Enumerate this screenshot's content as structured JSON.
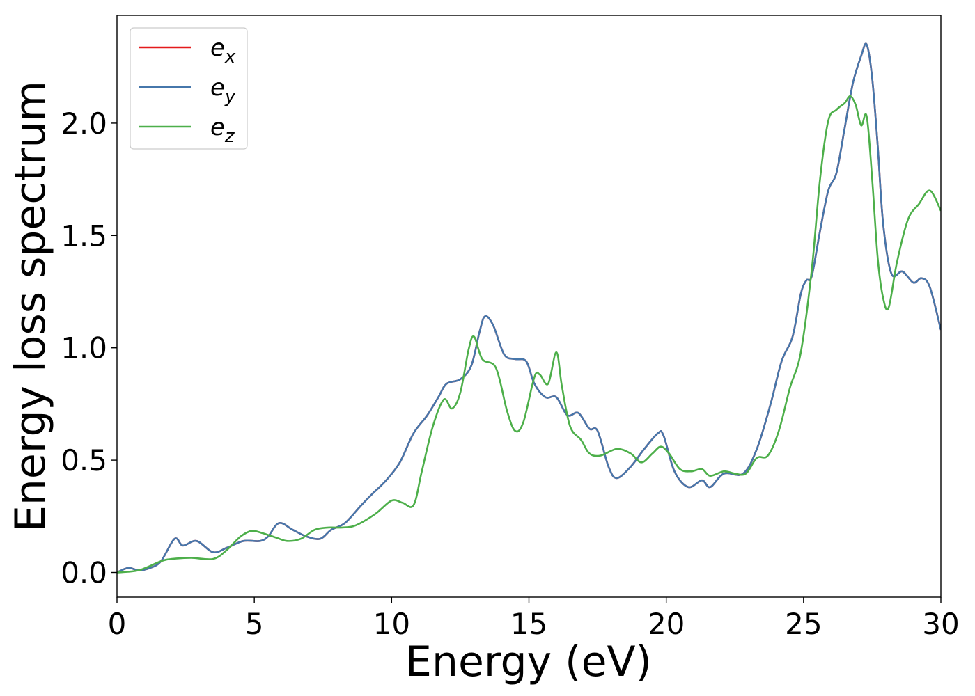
{
  "chart_data": {
    "type": "line",
    "title": "",
    "xlabel": "Energy (eV)",
    "ylabel": "Energy loss spectrum",
    "xlim": [
      0,
      30
    ],
    "ylim": [
      -0.11,
      2.48
    ],
    "xticks": [
      0,
      5,
      10,
      15,
      20,
      25,
      30
    ],
    "xtick_labels": [
      "0",
      "5",
      "10",
      "15",
      "20",
      "25",
      "30"
    ],
    "yticks": [
      0.0,
      0.5,
      1.0,
      1.5,
      2.0
    ],
    "ytick_labels": [
      "0.0",
      "0.5",
      "1.0",
      "1.5",
      "2.0"
    ],
    "grid": false,
    "legend_position": "top-left",
    "series": [
      {
        "name": "e",
        "subscript": "x",
        "color": "#e41a1c",
        "points": [
          [
            0,
            0.0
          ],
          [
            0.4,
            0.02
          ],
          [
            0.8,
            0.01
          ],
          [
            1.2,
            0.02
          ],
          [
            1.6,
            0.05
          ],
          [
            2.1,
            0.15
          ],
          [
            2.4,
            0.12
          ],
          [
            2.9,
            0.14
          ],
          [
            3.5,
            0.09
          ],
          [
            4.0,
            0.11
          ],
          [
            4.6,
            0.14
          ],
          [
            5.2,
            0.14
          ],
          [
            5.5,
            0.16
          ],
          [
            5.9,
            0.22
          ],
          [
            6.4,
            0.19
          ],
          [
            6.9,
            0.16
          ],
          [
            7.4,
            0.15
          ],
          [
            7.8,
            0.19
          ],
          [
            8.3,
            0.22
          ],
          [
            8.9,
            0.3
          ],
          [
            9.3,
            0.35
          ],
          [
            9.8,
            0.41
          ],
          [
            10.3,
            0.49
          ],
          [
            10.8,
            0.62
          ],
          [
            11.3,
            0.7
          ],
          [
            11.7,
            0.78
          ],
          [
            12.0,
            0.84
          ],
          [
            12.5,
            0.86
          ],
          [
            12.9,
            0.92
          ],
          [
            13.2,
            1.07
          ],
          [
            13.4,
            1.14
          ],
          [
            13.7,
            1.1
          ],
          [
            14.1,
            0.97
          ],
          [
            14.5,
            0.95
          ],
          [
            14.9,
            0.94
          ],
          [
            15.2,
            0.84
          ],
          [
            15.6,
            0.78
          ],
          [
            16.0,
            0.78
          ],
          [
            16.4,
            0.7
          ],
          [
            16.8,
            0.71
          ],
          [
            17.2,
            0.64
          ],
          [
            17.5,
            0.63
          ],
          [
            17.9,
            0.47
          ],
          [
            18.2,
            0.42
          ],
          [
            18.7,
            0.47
          ],
          [
            19.2,
            0.55
          ],
          [
            19.7,
            0.62
          ],
          [
            19.9,
            0.61
          ],
          [
            20.3,
            0.45
          ],
          [
            20.8,
            0.38
          ],
          [
            21.3,
            0.41
          ],
          [
            21.6,
            0.38
          ],
          [
            22.1,
            0.44
          ],
          [
            22.8,
            0.44
          ],
          [
            23.3,
            0.55
          ],
          [
            23.8,
            0.75
          ],
          [
            24.2,
            0.94
          ],
          [
            24.6,
            1.05
          ],
          [
            24.9,
            1.24
          ],
          [
            25.1,
            1.3
          ],
          [
            25.3,
            1.32
          ],
          [
            25.6,
            1.52
          ],
          [
            25.9,
            1.7
          ],
          [
            26.2,
            1.78
          ],
          [
            26.5,
            1.98
          ],
          [
            26.8,
            2.18
          ],
          [
            27.1,
            2.3
          ],
          [
            27.3,
            2.35
          ],
          [
            27.5,
            2.2
          ],
          [
            27.7,
            1.9
          ],
          [
            27.9,
            1.55
          ],
          [
            28.2,
            1.33
          ],
          [
            28.6,
            1.34
          ],
          [
            29.0,
            1.29
          ],
          [
            29.3,
            1.31
          ],
          [
            29.6,
            1.27
          ],
          [
            30.0,
            1.08
          ]
        ]
      },
      {
        "name": "e",
        "subscript": "y",
        "color": "#4677ab",
        "points": [
          [
            0,
            0.0
          ],
          [
            0.4,
            0.02
          ],
          [
            0.8,
            0.01
          ],
          [
            1.2,
            0.02
          ],
          [
            1.6,
            0.05
          ],
          [
            2.1,
            0.15
          ],
          [
            2.4,
            0.12
          ],
          [
            2.9,
            0.14
          ],
          [
            3.5,
            0.09
          ],
          [
            4.0,
            0.11
          ],
          [
            4.6,
            0.14
          ],
          [
            5.2,
            0.14
          ],
          [
            5.5,
            0.16
          ],
          [
            5.9,
            0.22
          ],
          [
            6.4,
            0.19
          ],
          [
            6.9,
            0.16
          ],
          [
            7.4,
            0.15
          ],
          [
            7.8,
            0.19
          ],
          [
            8.3,
            0.22
          ],
          [
            8.9,
            0.3
          ],
          [
            9.3,
            0.35
          ],
          [
            9.8,
            0.41
          ],
          [
            10.3,
            0.49
          ],
          [
            10.8,
            0.62
          ],
          [
            11.3,
            0.7
          ],
          [
            11.7,
            0.78
          ],
          [
            12.0,
            0.84
          ],
          [
            12.5,
            0.86
          ],
          [
            12.9,
            0.92
          ],
          [
            13.2,
            1.07
          ],
          [
            13.4,
            1.14
          ],
          [
            13.7,
            1.1
          ],
          [
            14.1,
            0.97
          ],
          [
            14.5,
            0.95
          ],
          [
            14.9,
            0.94
          ],
          [
            15.2,
            0.84
          ],
          [
            15.6,
            0.78
          ],
          [
            16.0,
            0.78
          ],
          [
            16.4,
            0.7
          ],
          [
            16.8,
            0.71
          ],
          [
            17.2,
            0.64
          ],
          [
            17.5,
            0.63
          ],
          [
            17.9,
            0.47
          ],
          [
            18.2,
            0.42
          ],
          [
            18.7,
            0.47
          ],
          [
            19.2,
            0.55
          ],
          [
            19.7,
            0.62
          ],
          [
            19.9,
            0.61
          ],
          [
            20.3,
            0.45
          ],
          [
            20.8,
            0.38
          ],
          [
            21.3,
            0.41
          ],
          [
            21.6,
            0.38
          ],
          [
            22.1,
            0.44
          ],
          [
            22.8,
            0.44
          ],
          [
            23.3,
            0.55
          ],
          [
            23.8,
            0.75
          ],
          [
            24.2,
            0.94
          ],
          [
            24.6,
            1.05
          ],
          [
            24.9,
            1.24
          ],
          [
            25.1,
            1.3
          ],
          [
            25.3,
            1.32
          ],
          [
            25.6,
            1.52
          ],
          [
            25.9,
            1.7
          ],
          [
            26.2,
            1.78
          ],
          [
            26.5,
            1.98
          ],
          [
            26.8,
            2.18
          ],
          [
            27.1,
            2.3
          ],
          [
            27.3,
            2.35
          ],
          [
            27.5,
            2.2
          ],
          [
            27.7,
            1.9
          ],
          [
            27.9,
            1.55
          ],
          [
            28.2,
            1.33
          ],
          [
            28.6,
            1.34
          ],
          [
            29.0,
            1.29
          ],
          [
            29.3,
            1.31
          ],
          [
            29.6,
            1.27
          ],
          [
            30.0,
            1.08
          ]
        ]
      },
      {
        "name": "e",
        "subscript": "z",
        "color": "#4daf4a",
        "points": [
          [
            0,
            0.0
          ],
          [
            0.8,
            0.01
          ],
          [
            1.6,
            0.05
          ],
          [
            2.0,
            0.06
          ],
          [
            2.7,
            0.065
          ],
          [
            3.5,
            0.06
          ],
          [
            4.0,
            0.1
          ],
          [
            4.5,
            0.16
          ],
          [
            4.9,
            0.185
          ],
          [
            5.3,
            0.175
          ],
          [
            5.8,
            0.155
          ],
          [
            6.2,
            0.14
          ],
          [
            6.7,
            0.15
          ],
          [
            7.2,
            0.19
          ],
          [
            7.7,
            0.2
          ],
          [
            8.2,
            0.2
          ],
          [
            8.7,
            0.21
          ],
          [
            9.4,
            0.26
          ],
          [
            10.0,
            0.32
          ],
          [
            10.4,
            0.31
          ],
          [
            10.8,
            0.3
          ],
          [
            11.1,
            0.45
          ],
          [
            11.5,
            0.65
          ],
          [
            11.9,
            0.77
          ],
          [
            12.2,
            0.73
          ],
          [
            12.5,
            0.8
          ],
          [
            12.8,
            0.99
          ],
          [
            13.0,
            1.05
          ],
          [
            13.3,
            0.95
          ],
          [
            13.8,
            0.91
          ],
          [
            14.2,
            0.72
          ],
          [
            14.5,
            0.63
          ],
          [
            14.8,
            0.67
          ],
          [
            15.2,
            0.87
          ],
          [
            15.4,
            0.88
          ],
          [
            15.7,
            0.84
          ],
          [
            16.0,
            0.98
          ],
          [
            16.2,
            0.83
          ],
          [
            16.5,
            0.65
          ],
          [
            16.9,
            0.59
          ],
          [
            17.2,
            0.53
          ],
          [
            17.6,
            0.52
          ],
          [
            18.2,
            0.55
          ],
          [
            18.7,
            0.53
          ],
          [
            19.1,
            0.49
          ],
          [
            19.5,
            0.53
          ],
          [
            19.8,
            0.56
          ],
          [
            20.1,
            0.53
          ],
          [
            20.5,
            0.46
          ],
          [
            20.9,
            0.45
          ],
          [
            21.3,
            0.46
          ],
          [
            21.6,
            0.43
          ],
          [
            22.1,
            0.45
          ],
          [
            22.5,
            0.44
          ],
          [
            22.9,
            0.44
          ],
          [
            23.3,
            0.51
          ],
          [
            23.7,
            0.52
          ],
          [
            24.1,
            0.63
          ],
          [
            24.5,
            0.82
          ],
          [
            24.9,
            0.98
          ],
          [
            25.3,
            1.35
          ],
          [
            25.6,
            1.75
          ],
          [
            25.9,
            2.01
          ],
          [
            26.2,
            2.06
          ],
          [
            26.5,
            2.09
          ],
          [
            26.7,
            2.12
          ],
          [
            26.9,
            2.08
          ],
          [
            27.1,
            1.99
          ],
          [
            27.3,
            2.03
          ],
          [
            27.5,
            1.75
          ],
          [
            27.7,
            1.4
          ],
          [
            27.9,
            1.22
          ],
          [
            28.1,
            1.18
          ],
          [
            28.4,
            1.38
          ],
          [
            28.8,
            1.57
          ],
          [
            29.2,
            1.64
          ],
          [
            29.6,
            1.7
          ],
          [
            30.0,
            1.61
          ]
        ]
      }
    ]
  }
}
